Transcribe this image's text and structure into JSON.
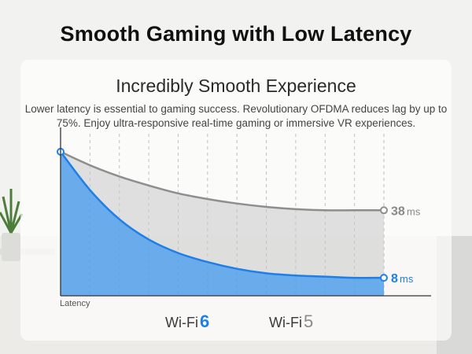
{
  "page": {
    "headline": "Smooth Gaming with Low Latency",
    "card_title": "Incredibly Smooth Experience",
    "description": "Lower latency is essential to gaming success. Revolutionary OFDMA reduces lag by up to 75%. Enjoy ultra-responsive real-time gaming or immersive VR experiences."
  },
  "colors": {
    "wifi6": "#1e7fe6",
    "wifi6_fill": "#3d97f0",
    "wifi5": "#8e8e8e",
    "wifi5_fill": "#c9c9c9"
  },
  "chart_data": {
    "type": "area",
    "title": "",
    "ylabel": "Latency",
    "xlabel": "",
    "grid": true,
    "ylim": [
      0,
      72
    ],
    "x": [
      0,
      1,
      2,
      3,
      4,
      5,
      6,
      7,
      8,
      9,
      10,
      11
    ],
    "series": [
      {
        "name": "Wi-Fi 5",
        "legend_label": "Wi-Fi",
        "legend_number": "5",
        "end_label_value": "38",
        "end_label_unit": "ms",
        "values": [
          64,
          58,
          53,
          49,
          45.5,
          43,
          41,
          39.5,
          38.5,
          38,
          38,
          38
        ]
      },
      {
        "name": "Wi-Fi 6",
        "legend_label": "Wi-Fi",
        "legend_number": "6",
        "end_label_value": "8",
        "end_label_unit": "ms",
        "values": [
          64,
          47,
          34,
          25,
          19,
          15,
          12,
          10,
          9,
          8.5,
          8,
          8
        ]
      }
    ]
  }
}
